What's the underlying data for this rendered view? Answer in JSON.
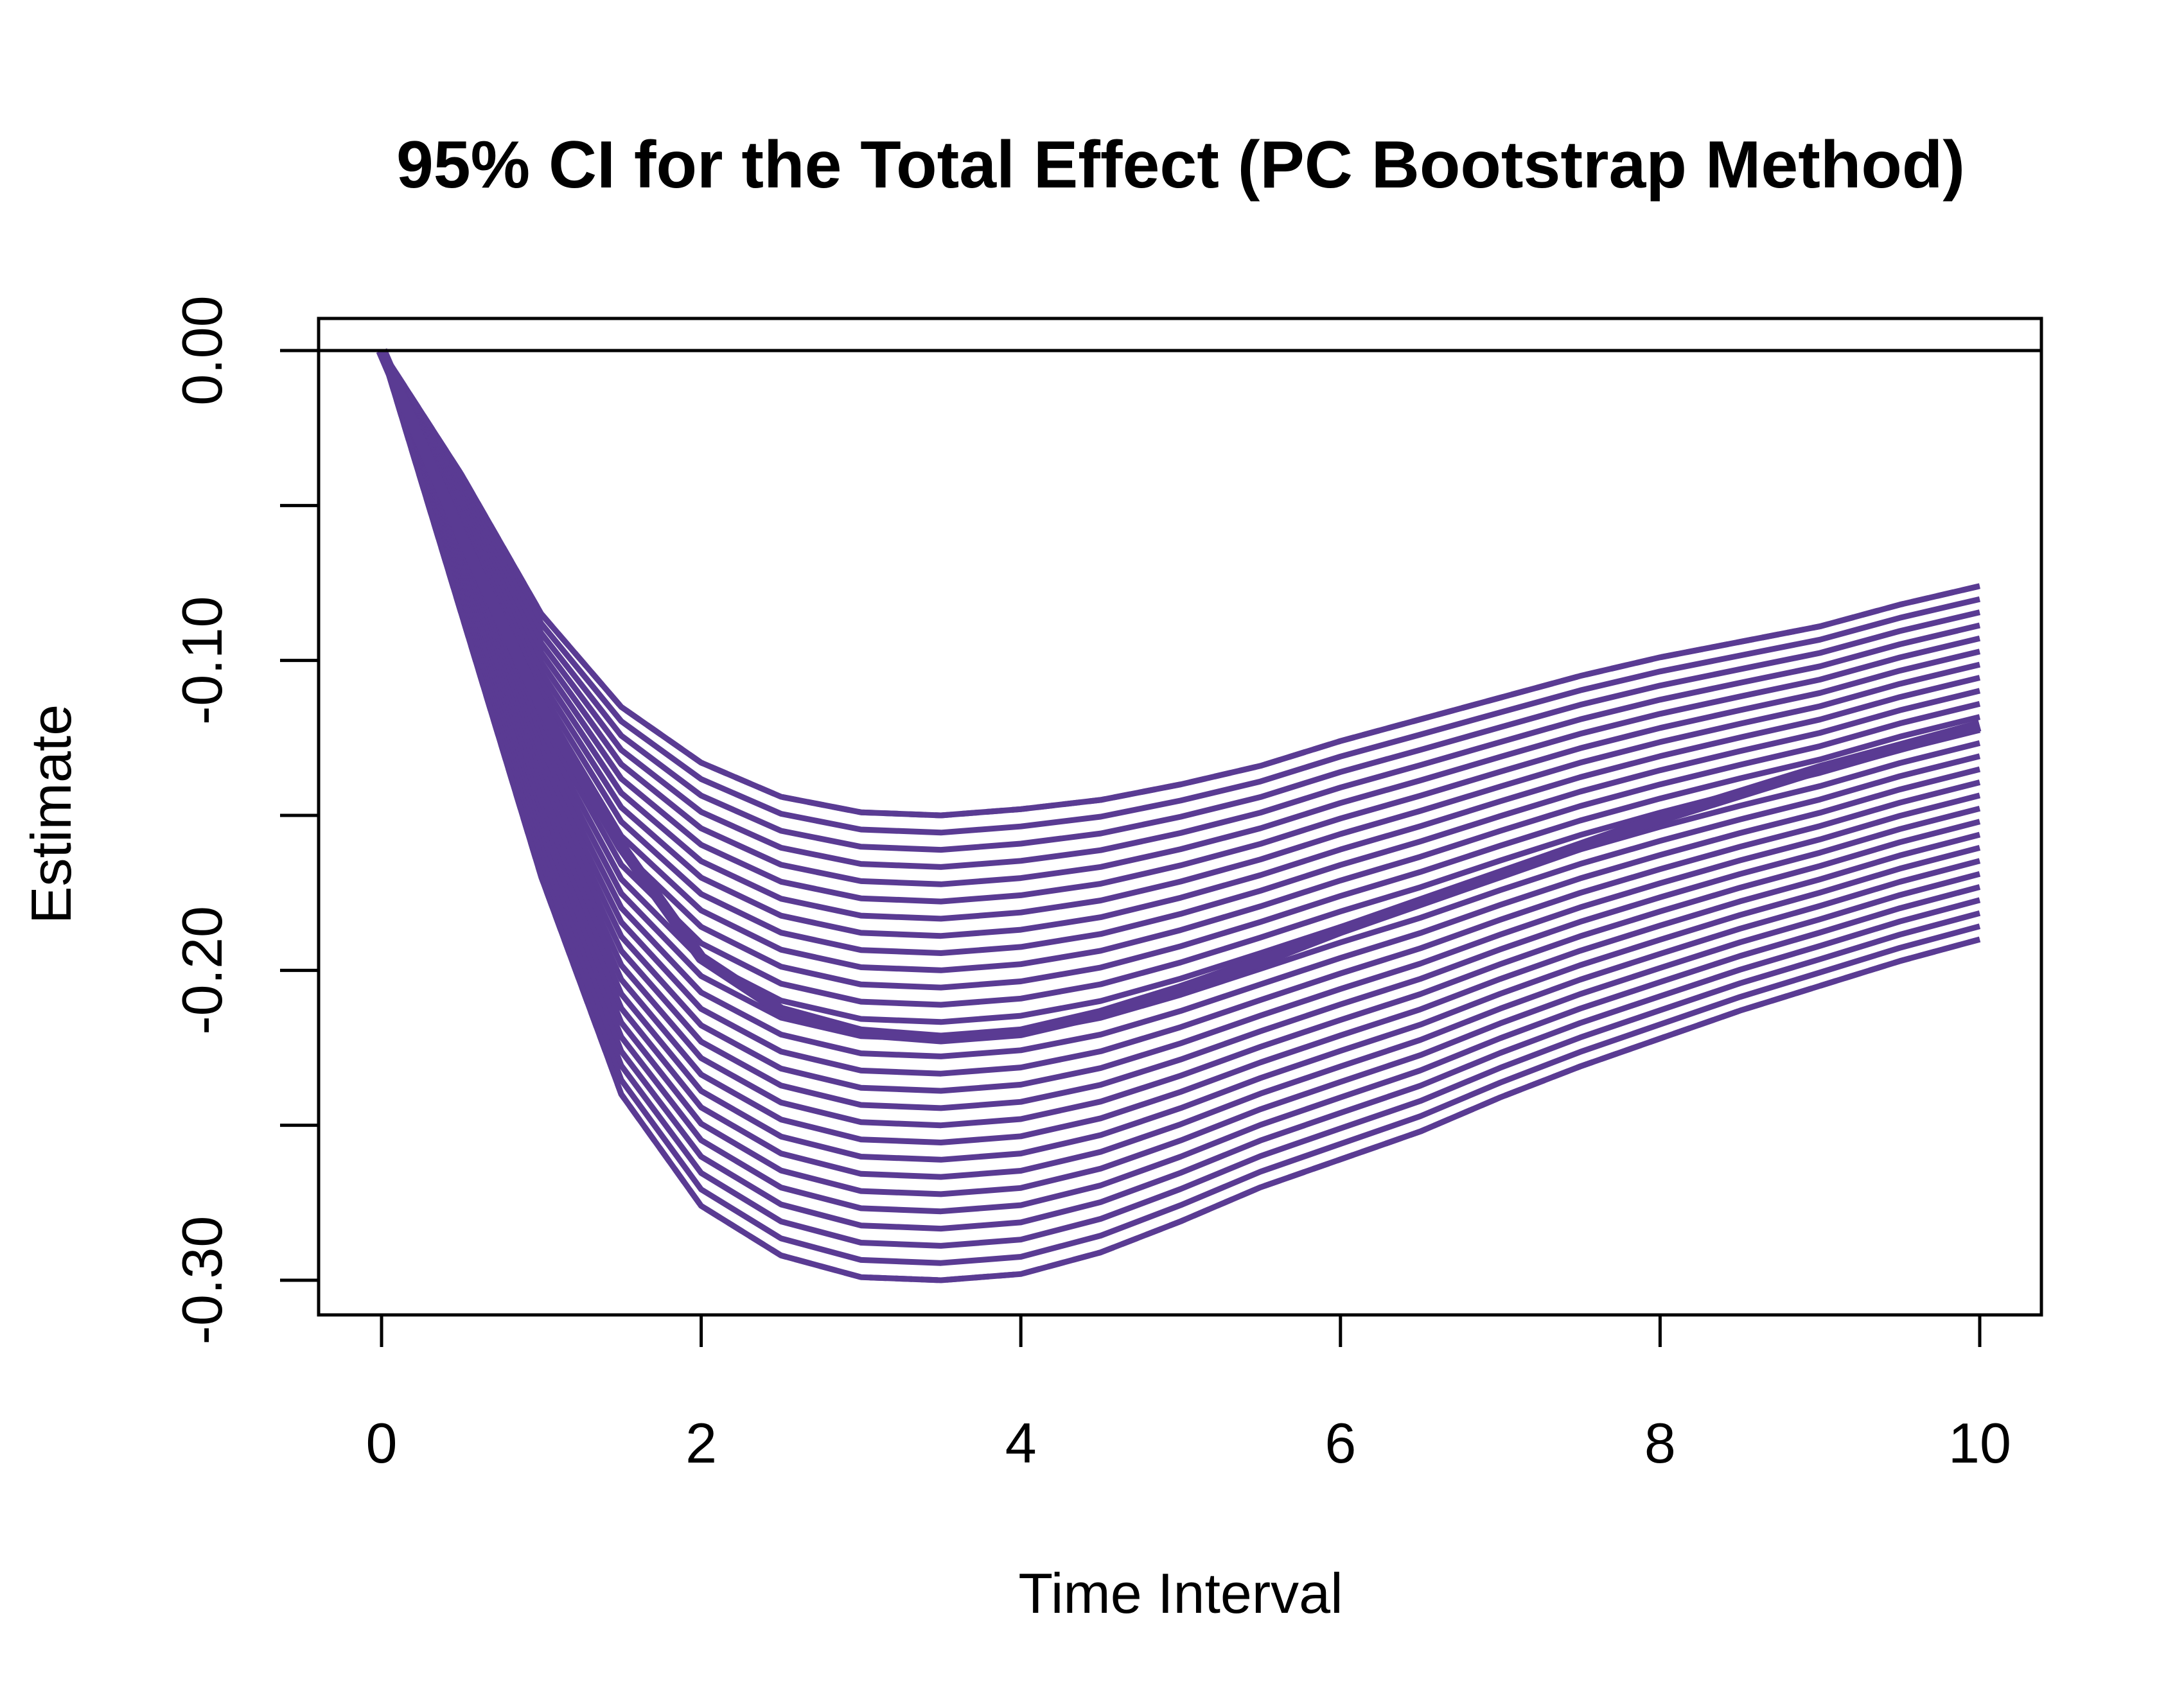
{
  "chart_data": {
    "type": "line",
    "title": "95% CI for the Total Effect (PC Bootstrap Method)",
    "xlabel": "Time Interval",
    "ylabel": "Estimate",
    "xlim": [
      0,
      10
    ],
    "ylim": [
      -0.3,
      0.0
    ],
    "x_ticks": [
      "0",
      "2",
      "4",
      "6",
      "8",
      "10"
    ],
    "y_ticks": [
      "0.00",
      "-0.10",
      "-0.20",
      "-0.30"
    ],
    "y_minor_ticks": [
      -0.05,
      -0.15,
      -0.25
    ],
    "reference_line": 0,
    "color": "#5a3b93",
    "x": [
      0,
      0.5,
      1,
      1.5,
      2,
      2.5,
      3,
      3.5,
      4,
      4.5,
      5,
      5.5,
      6,
      6.5,
      7,
      7.5,
      8,
      8.5,
      9,
      9.5,
      10
    ],
    "series": [
      {
        "role": "estimate",
        "style": "solid-thick",
        "values": [
          0,
          -0.06,
          -0.115,
          -0.16,
          -0.196,
          -0.213,
          -0.22,
          -0.222,
          -0.22,
          -0.214,
          -0.206,
          -0.197,
          -0.187,
          -0.178,
          -0.169,
          -0.16,
          -0.151,
          -0.143,
          -0.135,
          -0.128,
          -0.121
        ]
      },
      {
        "role": "upper",
        "style": "dashed",
        "values": [
          0,
          -0.04,
          -0.085,
          -0.115,
          -0.133,
          -0.144,
          -0.149,
          -0.15,
          -0.148,
          -0.145,
          -0.14,
          -0.134,
          -0.126,
          -0.119,
          -0.112,
          -0.105,
          -0.099,
          -0.094,
          -0.089,
          -0.082,
          -0.076
        ]
      },
      {
        "role": "lower",
        "style": "dashed",
        "values": [
          0,
          -0.085,
          -0.17,
          -0.24,
          -0.276,
          -0.292,
          -0.299,
          -0.3,
          -0.298,
          -0.291,
          -0.281,
          -0.27,
          -0.261,
          -0.252,
          -0.241,
          -0.231,
          -0.222,
          -0.213,
          -0.205,
          -0.197,
          -0.19
        ]
      }
    ],
    "band_lines": 28,
    "grid": false,
    "legend": "none"
  }
}
